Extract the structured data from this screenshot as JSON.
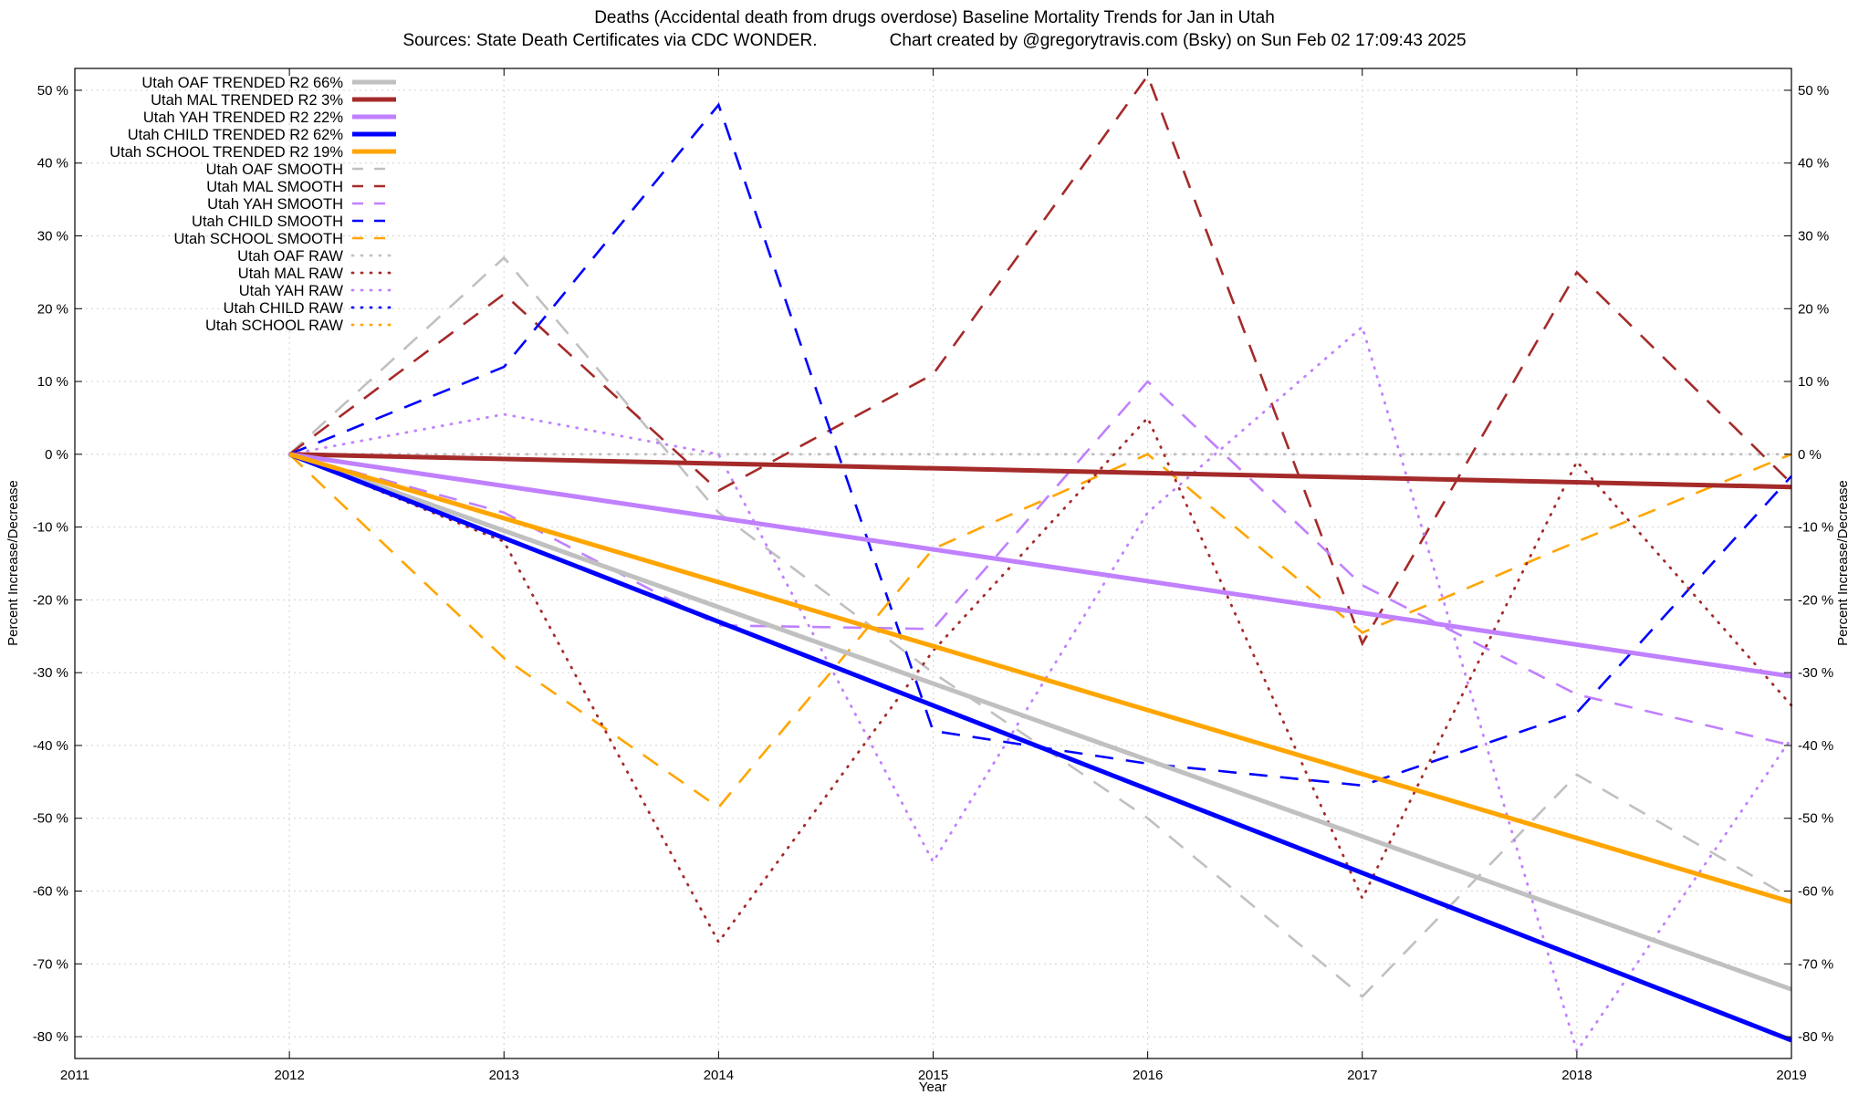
{
  "chart_data": {
    "type": "line",
    "title": "Deaths (Accidental death from drugs overdose)  Baseline Mortality Trends for Jan in Utah",
    "subtitle": "Sources: State Death Certificates via CDC WONDER.               Chart created by @gregorytravis.com (Bsky) on Sun Feb 02 17:09:43 2025",
    "xlabel": "Year",
    "ylabel": "Percent Increase/Decrease",
    "y2label": "Percent Increase/Decrease",
    "xlim": [
      2011,
      2019
    ],
    "ylim": [
      -83,
      53
    ],
    "x_ticks": [
      "2011",
      "2012",
      "2013",
      "2014",
      "2015",
      "2016",
      "2017",
      "2018",
      "2019"
    ],
    "y_ticks": [
      "50 %",
      "40 %",
      "30 %",
      "20 %",
      "10 %",
      "0 %",
      "-10 %",
      "-20 %",
      "-30 %",
      "-40 %",
      "-50 %",
      "-60 %",
      "-70 %",
      "-80 %"
    ],
    "y_tick_values": [
      50,
      40,
      30,
      20,
      10,
      0,
      -10,
      -20,
      -30,
      -40,
      -50,
      -60,
      -70,
      -80
    ],
    "grid": true,
    "legend_position": "top-left",
    "series": [
      {
        "name": "Utah OAF TRENDED R2  66%",
        "style": "solid",
        "color": "#c0c0c0",
        "x": [
          2012,
          2019
        ],
        "y": [
          0,
          -73.5
        ]
      },
      {
        "name": "Utah MAL TRENDED R2   3%",
        "style": "solid",
        "color": "#a52a2a",
        "x": [
          2012,
          2019
        ],
        "y": [
          0,
          -4.5
        ]
      },
      {
        "name": "Utah YAH TRENDED R2  22%",
        "style": "solid",
        "color": "#c080ff",
        "x": [
          2012,
          2019
        ],
        "y": [
          0,
          -30.5
        ]
      },
      {
        "name": "Utah CHILD TRENDED R2  62%",
        "style": "solid",
        "color": "#0000ff",
        "x": [
          2012,
          2019
        ],
        "y": [
          0,
          -80.5
        ]
      },
      {
        "name": "Utah SCHOOL TRENDED R2  19%",
        "style": "solid",
        "color": "#ffa500",
        "x": [
          2012,
          2019
        ],
        "y": [
          0,
          -61.5
        ]
      },
      {
        "name": "Utah OAF SMOOTH",
        "style": "dashed",
        "color": "#c0c0c0",
        "x": [
          2012,
          2013,
          2014,
          2015,
          2016,
          2017,
          2018,
          2019
        ],
        "y": [
          0,
          27,
          -8,
          -30,
          -50,
          -74.5,
          -44,
          -61
        ]
      },
      {
        "name": "Utah MAL SMOOTH",
        "style": "dashed",
        "color": "#a52a2a",
        "x": [
          2012,
          2013,
          2014,
          2015,
          2016,
          2017,
          2018,
          2019
        ],
        "y": [
          0,
          22,
          -5,
          11,
          52,
          -26,
          25,
          -4
        ]
      },
      {
        "name": "Utah YAH SMOOTH",
        "style": "dashed",
        "color": "#c080ff",
        "x": [
          2012,
          2013,
          2014,
          2015,
          2016,
          2017,
          2018,
          2019
        ],
        "y": [
          0,
          -8,
          -23.5,
          -24,
          10,
          -18,
          -33,
          -40
        ]
      },
      {
        "name": "Utah CHILD SMOOTH",
        "style": "dashed",
        "color": "#0000ff",
        "x": [
          2012,
          2013,
          2014,
          2015,
          2016,
          2017,
          2018,
          2019
        ],
        "y": [
          0,
          12,
          48,
          -38,
          -42.5,
          -45.5,
          -35.5,
          -3
        ]
      },
      {
        "name": "Utah SCHOOL SMOOTH",
        "style": "dashed",
        "color": "#ffa500",
        "x": [
          2012,
          2013,
          2014,
          2015,
          2016,
          2017,
          2018,
          2019
        ],
        "y": [
          0,
          -28,
          -48.5,
          -13,
          0,
          -24.5,
          -12,
          0
        ]
      },
      {
        "name": "Utah OAF RAW",
        "style": "dotted",
        "color": "#c0c0c0",
        "x": [
          2012,
          2013,
          2014,
          2015,
          2016,
          2017,
          2018,
          2019
        ],
        "y": [
          0,
          0,
          0,
          0,
          0,
          0,
          0,
          0
        ]
      },
      {
        "name": "Utah MAL RAW",
        "style": "dotted",
        "color": "#a52a2a",
        "x": [
          2012,
          2013,
          2014,
          2015,
          2016,
          2017,
          2018,
          2019
        ],
        "y": [
          0,
          -12,
          -67,
          -27,
          5,
          -61,
          -1,
          -34.5
        ]
      },
      {
        "name": "Utah YAH RAW",
        "style": "dotted",
        "color": "#c080ff",
        "x": [
          2012,
          2013,
          2014,
          2015,
          2016,
          2017,
          2018,
          2019
        ],
        "y": [
          0,
          5.5,
          0,
          -56,
          -8,
          17.5,
          -82,
          -39
        ]
      },
      {
        "name": "Utah CHILD RAW",
        "style": "dotted",
        "color": "#0000ff",
        "x": [
          2012
        ],
        "y": [
          0
        ]
      },
      {
        "name": "Utah SCHOOL RAW",
        "style": "dotted",
        "color": "#ffa500",
        "x": [
          2012
        ],
        "y": [
          0
        ]
      }
    ]
  }
}
